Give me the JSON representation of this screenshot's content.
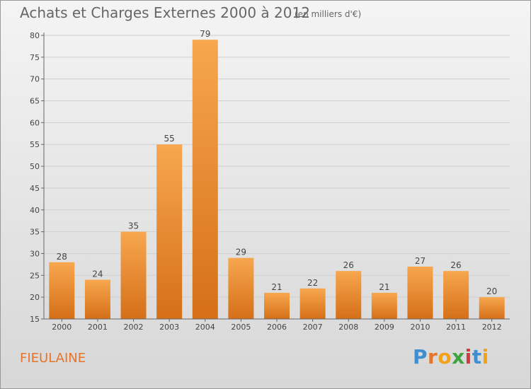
{
  "header": {
    "title": "Achats et Charges Externes 2000 à 2012",
    "subtitle": "(en milliers d'€)"
  },
  "footer": {
    "city": "FIEULAINE",
    "brand": [
      "P",
      "r",
      "o",
      "x",
      "i",
      "t",
      "i"
    ]
  },
  "colors": {
    "bar_light": "#f7a74e",
    "bar_dark": "#d56f18",
    "grid": "#cfcfcf",
    "axis": "#666666"
  },
  "chart_data": {
    "type": "bar",
    "title": "Achats et Charges Externes 2000 à 2012",
    "xlabel": "",
    "ylabel": "",
    "ylim": [
      15,
      80
    ],
    "yticks": [
      15,
      20,
      25,
      30,
      35,
      40,
      45,
      50,
      55,
      60,
      65,
      70,
      75,
      80
    ],
    "grid": true,
    "categories": [
      "2000",
      "2001",
      "2002",
      "2003",
      "2004",
      "2005",
      "2006",
      "2007",
      "2008",
      "2009",
      "2010",
      "2011",
      "2012"
    ],
    "values": [
      28,
      24,
      35,
      55,
      79,
      29,
      21,
      22,
      26,
      21,
      27,
      26,
      20
    ]
  }
}
